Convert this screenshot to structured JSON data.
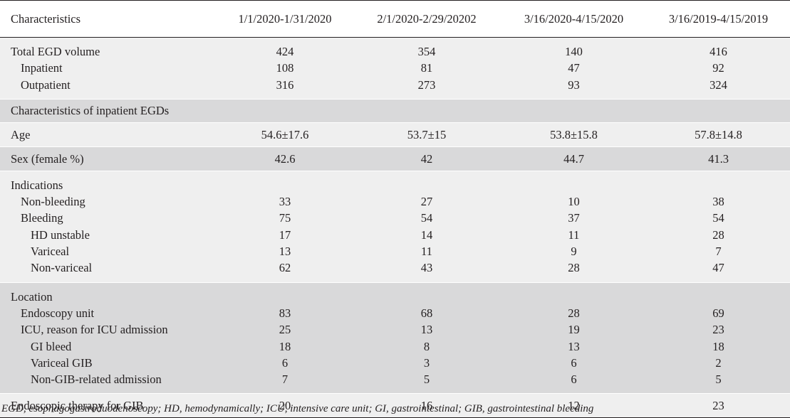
{
  "table": {
    "headers": [
      "Characteristics",
      "1/1/2020-1/31/2020",
      "2/1/2020-2/29/20202",
      "3/16/2020-4/15/2020",
      "3/16/2019-4/15/2019"
    ],
    "groups": [
      {
        "shade": "light",
        "rows": [
          {
            "level": 0,
            "label": "Total EGD volume",
            "values": [
              "424",
              "354",
              "140",
              "416"
            ]
          },
          {
            "level": 1,
            "label": "Inpatient",
            "values": [
              "108",
              "81",
              "47",
              "92"
            ]
          },
          {
            "level": 1,
            "label": "Outpatient",
            "values": [
              "316",
              "273",
              "93",
              "324"
            ]
          }
        ]
      },
      {
        "shade": "dark",
        "header": true,
        "rows": [
          {
            "level": 0,
            "label": "Characteristics of inpatient EGDs",
            "values": [
              "",
              "",
              "",
              ""
            ]
          }
        ]
      },
      {
        "shade": "light",
        "single": true,
        "rows": [
          {
            "level": 0,
            "label": "Age",
            "values": [
              "54.6±17.6",
              "53.7±15",
              "53.8±15.8",
              "57.8±14.8"
            ]
          }
        ]
      },
      {
        "shade": "dark",
        "single": true,
        "rows": [
          {
            "level": 0,
            "label": "Sex (female %)",
            "values": [
              "42.6",
              "42",
              "44.7",
              "41.3"
            ]
          }
        ]
      },
      {
        "shade": "light",
        "rows": [
          {
            "level": 0,
            "label": "Indications",
            "values": [
              "",
              "",
              "",
              ""
            ]
          },
          {
            "level": 1,
            "label": "Non-bleeding",
            "values": [
              "33",
              "27",
              "10",
              "38"
            ]
          },
          {
            "level": 1,
            "label": "Bleeding",
            "values": [
              "75",
              "54",
              "37",
              "54"
            ]
          },
          {
            "level": 2,
            "label": "HD unstable",
            "values": [
              "17",
              "14",
              "11",
              "28"
            ]
          },
          {
            "level": 2,
            "label": "Variceal",
            "values": [
              "13",
              "11",
              "9",
              "7"
            ]
          },
          {
            "level": 2,
            "label": "Non-variceal",
            "values": [
              "62",
              "43",
              "28",
              "47"
            ]
          }
        ]
      },
      {
        "shade": "dark",
        "rows": [
          {
            "level": 0,
            "label": "Location",
            "values": [
              "",
              "",
              "",
              ""
            ]
          },
          {
            "level": 1,
            "label": "Endoscopy unit",
            "values": [
              "83",
              "68",
              "28",
              "69"
            ]
          },
          {
            "level": 1,
            "label": "ICU, reason for ICU admission",
            "values": [
              "25",
              "13",
              "19",
              "23"
            ]
          },
          {
            "level": 2,
            "label": "GI bleed",
            "values": [
              "18",
              "8",
              "13",
              "18"
            ]
          },
          {
            "level": 2,
            "label": "Variceal GIB",
            "values": [
              "6",
              "3",
              "6",
              "2"
            ]
          },
          {
            "level": 2,
            "label": "Non-GIB-related admission",
            "values": [
              "7",
              "5",
              "6",
              "5"
            ]
          }
        ]
      },
      {
        "shade": "light",
        "single": true,
        "last": true,
        "rows": [
          {
            "level": 0,
            "label": "Endoscopic therapy for GIB",
            "values": [
              "20",
              "16",
              "12",
              "23"
            ]
          }
        ]
      }
    ]
  },
  "footnote": "EGD, esophagogastroduodenoscopy; HD, hemodynamically; ICU, intensive care unit; GI, gastrointestinal; GIB, gastrointestinal bleeding",
  "colors": {
    "shade_light": "#efefef",
    "shade_dark": "#d9d9da",
    "text": "#231f20"
  }
}
